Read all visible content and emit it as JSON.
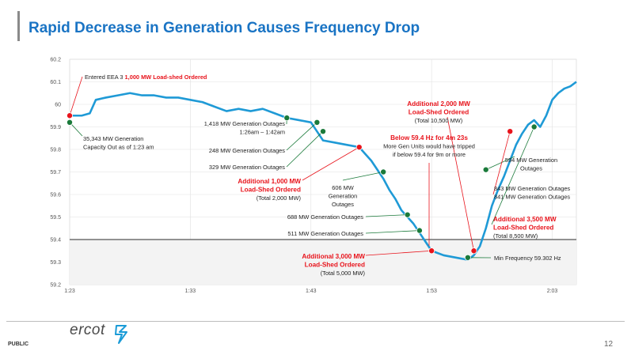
{
  "slide": {
    "title": "Rapid Decrease in Generation Causes Frequency Drop",
    "page_number": "12",
    "classification": "PUBLIC",
    "brand_text": "ercot"
  },
  "chart_data": {
    "type": "line",
    "title": "",
    "xlabel": "",
    "ylabel": "",
    "x_ticks": [
      "1:23",
      "1:33",
      "1:43",
      "1:53",
      "2:03"
    ],
    "x_range": [
      "1:23",
      "2:05"
    ],
    "ylim": [
      59.2,
      60.2
    ],
    "y_ticks": [
      59.2,
      59.3,
      59.4,
      59.5,
      59.6,
      59.7,
      59.8,
      59.9,
      60.0,
      60.1,
      60.2
    ],
    "y_tick_labels": [
      "59.2",
      "59.3",
      "59.4",
      "59.5",
      "59.6",
      "59.7",
      "59.8",
      "59.9",
      "60",
      "60.1",
      "60.2"
    ],
    "grid": true,
    "threshold": {
      "value": 59.4
    },
    "colors": {
      "line": "#1f9ad6",
      "threshold": "#555555",
      "shade": "#f2c4c8",
      "red_point": "#e8141c",
      "green_point": "#1a7a3a",
      "accent": "#1a74c4"
    },
    "series": [
      {
        "points": [
          [
            "1:23:00",
            59.95
          ],
          [
            "1:24:00",
            59.95
          ],
          [
            "1:24:40",
            59.96
          ],
          [
            "1:25:10",
            60.02
          ],
          [
            "1:26:00",
            60.03
          ],
          [
            "1:27:00",
            60.04
          ],
          [
            "1:28:00",
            60.05
          ],
          [
            "1:29:00",
            60.04
          ],
          [
            "1:30:00",
            60.04
          ],
          [
            "1:31:00",
            60.03
          ],
          [
            "1:32:00",
            60.03
          ],
          [
            "1:33:00",
            60.02
          ],
          [
            "1:34:00",
            60.01
          ],
          [
            "1:35:00",
            59.99
          ],
          [
            "1:36:00",
            59.97
          ],
          [
            "1:37:00",
            59.98
          ],
          [
            "1:38:00",
            59.97
          ],
          [
            "1:39:00",
            59.98
          ],
          [
            "1:40:00",
            59.96
          ],
          [
            "1:41:00",
            59.94
          ],
          [
            "1:42:00",
            59.93
          ],
          [
            "1:43:00",
            59.92
          ],
          [
            "1:43:30",
            59.88
          ],
          [
            "1:44:00",
            59.84
          ],
          [
            "1:45:00",
            59.83
          ],
          [
            "1:46:00",
            59.82
          ],
          [
            "1:47:00",
            59.81
          ],
          [
            "1:47:30",
            59.78
          ],
          [
            "1:48:00",
            59.75
          ],
          [
            "1:48:30",
            59.71
          ],
          [
            "1:49:00",
            59.67
          ],
          [
            "1:49:30",
            59.62
          ],
          [
            "1:50:00",
            59.58
          ],
          [
            "1:50:30",
            59.53
          ],
          [
            "1:51:00",
            59.5
          ],
          [
            "1:51:30",
            59.47
          ],
          [
            "1:52:00",
            59.43
          ],
          [
            "1:52:30",
            59.39
          ],
          [
            "1:53:00",
            59.35
          ],
          [
            "1:54:00",
            59.33
          ],
          [
            "1:55:00",
            59.32
          ],
          [
            "1:56:00",
            59.31
          ],
          [
            "1:56:30",
            59.33
          ],
          [
            "1:57:00",
            59.37
          ],
          [
            "1:57:30",
            59.45
          ],
          [
            "1:58:00",
            59.55
          ],
          [
            "1:58:30",
            59.62
          ],
          [
            "1:59:00",
            59.68
          ],
          [
            "1:59:30",
            59.75
          ],
          [
            "2:00:00",
            59.82
          ],
          [
            "2:00:30",
            59.87
          ],
          [
            "2:01:00",
            59.91
          ],
          [
            "2:01:30",
            59.93
          ],
          [
            "2:02:00",
            59.9
          ],
          [
            "2:02:30",
            59.95
          ],
          [
            "2:03:00",
            60.02
          ],
          [
            "2:03:30",
            60.05
          ],
          [
            "2:04:00",
            60.07
          ],
          [
            "2:04:30",
            60.08
          ],
          [
            "2:05:00",
            60.1
          ]
        ]
      }
    ],
    "markers": [
      {
        "t": "1:23:00",
        "v": 59.95,
        "color": "red"
      },
      {
        "t": "1:23:00",
        "v": 59.92,
        "color": "green"
      },
      {
        "t": "1:41:00",
        "v": 59.94,
        "color": "green"
      },
      {
        "t": "1:43:30",
        "v": 59.92,
        "color": "green"
      },
      {
        "t": "1:44:00",
        "v": 59.88,
        "color": "green"
      },
      {
        "t": "1:47:00",
        "v": 59.81,
        "color": "red"
      },
      {
        "t": "1:49:00",
        "v": 59.7,
        "color": "green"
      },
      {
        "t": "1:51:00",
        "v": 59.51,
        "color": "green"
      },
      {
        "t": "1:52:00",
        "v": 59.44,
        "color": "green"
      },
      {
        "t": "1:53:00",
        "v": 59.35,
        "color": "red"
      },
      {
        "t": "1:56:00",
        "v": 59.32,
        "color": "green"
      },
      {
        "t": "1:56:30",
        "v": 59.35,
        "color": "red"
      },
      {
        "t": "1:57:30",
        "v": 59.71,
        "color": "green"
      },
      {
        "t": "1:59:30",
        "v": 59.88,
        "color": "red"
      },
      {
        "t": "2:01:30",
        "v": 59.9,
        "color": "green"
      }
    ],
    "annotations": [
      {
        "lines": [
          {
            "segments": [
              {
                "text": "Entered EEA 3 ",
                "red": false
              },
              {
                "text": "1,000 MW Load-shed Ordered",
                "red": true,
                "bold": true
              }
            ]
          }
        ]
      },
      {
        "lines": [
          {
            "text": "35,343 MW Generation"
          },
          {
            "text": "Capacity Out as of 1:23 am"
          }
        ]
      },
      {
        "lines": [
          {
            "text": "1,418 MW Generation Outages"
          },
          {
            "text": "1:26am – 1:42am"
          }
        ]
      },
      {
        "lines": [
          {
            "text": "248 MW Generation Outages"
          }
        ]
      },
      {
        "lines": [
          {
            "text": "329 MW Generation Outages"
          }
        ]
      },
      {
        "lines": [
          {
            "text": "Additional 1,000 MW",
            "red": true,
            "bold": true
          },
          {
            "text": "Load-Shed Ordered",
            "red": true,
            "bold": true
          },
          {
            "text": "(Total 2,000 MW)"
          }
        ]
      },
      {
        "lines": [
          {
            "text": "606 MW"
          },
          {
            "text": "Generation"
          },
          {
            "text": "Outages"
          }
        ]
      },
      {
        "lines": [
          {
            "text": "688 MW Generation Outages"
          }
        ]
      },
      {
        "lines": [
          {
            "text": "511 MW Generation Outages"
          }
        ]
      },
      {
        "lines": [
          {
            "text": "Additional 3,000 MW",
            "red": true,
            "bold": true
          },
          {
            "text": "Load-Shed Ordered",
            "red": true,
            "bold": true
          },
          {
            "text": "(Total 5,000 MW)"
          }
        ]
      },
      {
        "lines": [
          {
            "text": "Below 59.4 Hz for 4m 23s",
            "red": true,
            "bold": true
          },
          {
            "text": "More Gen Units would have tripped"
          },
          {
            "text": "if below 59.4 for 9m or more"
          }
        ]
      },
      {
        "lines": [
          {
            "text": "Additional 2,000 MW",
            "red": true,
            "bold": true
          },
          {
            "text": "Load-Shed Ordered",
            "red": true,
            "bold": true
          },
          {
            "text": "(Total 10,500 MW)"
          }
        ]
      },
      {
        "lines": [
          {
            "text": "594 MW Generation"
          },
          {
            "text": "Outages"
          }
        ]
      },
      {
        "lines": [
          {
            "text": "843 MW Generation Outages"
          },
          {
            "text": "841 MW Generation Outages"
          }
        ]
      },
      {
        "lines": [
          {
            "text": "Additional 3,500 MW",
            "red": true,
            "bold": true
          },
          {
            "text": "Load-Shed Ordered",
            "red": true,
            "bold": true
          },
          {
            "text": "(Total 8,500 MW)"
          }
        ]
      },
      {
        "lines": [
          {
            "text": "Min Frequency 59.302 Hz"
          }
        ]
      }
    ]
  }
}
